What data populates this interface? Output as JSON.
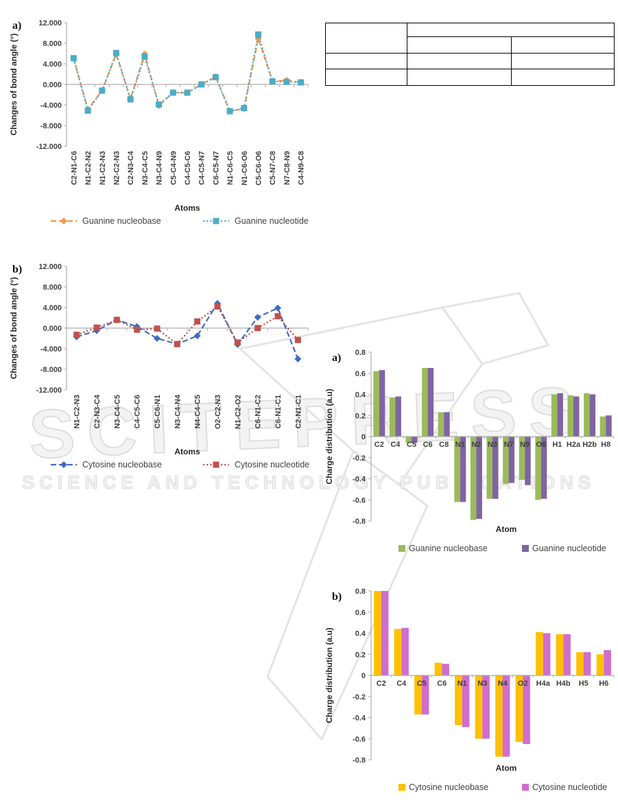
{
  "watermark": {
    "brand": "SCITEPRESS",
    "subtitle": "SCIENCE AND TECHNOLOGY PUBLICATIONS",
    "color": "#e8e8e8"
  },
  "empty_table": {
    "corner_cell": "",
    "top_header_cell": "",
    "sub_header_left": "",
    "sub_header_right": "",
    "rows": [
      [
        "",
        "",
        ""
      ],
      [
        "",
        "",
        ""
      ]
    ]
  },
  "chart_data": [
    {
      "id": "line-guanine-bond-angle",
      "type": "line",
      "panel_label": "a)",
      "ylabel": "Changes of bond angle (°)",
      "xlabel": "Atoms",
      "ylim": [
        -12,
        12
      ],
      "ytick_labels": [
        "12.000",
        "8.000",
        "4.000",
        "0.000",
        "-4.000",
        "-8.000",
        "-12.000"
      ],
      "grid": false,
      "legend_position": "bottom",
      "categories": [
        "C2-N1-C6",
        "N1-C2-N2",
        "N1-C2-N3",
        "N2-C2-N3",
        "C2-N3-C4",
        "N3-C4-C5",
        "N3-C4-N9",
        "C5-C4-N9",
        "C4-C5-C6",
        "C4-C5-N7",
        "C6-C5-N7",
        "N1-C6-C5",
        "N1-C6-O6",
        "C5-C6-O6",
        "C5-N7-C8",
        "N7-C8-N9",
        "C4-N9-C8"
      ],
      "series": [
        {
          "name": "Guanine nucleobase",
          "color": "#F79646",
          "marker": "diamond",
          "line_style": "dashed",
          "values": [
            5.0,
            -4.8,
            -1.2,
            5.9,
            -2.8,
            5.9,
            -4.1,
            -1.6,
            -1.6,
            0.0,
            1.5,
            -5.2,
            -4.7,
            8.9,
            0.6,
            0.8,
            0.4
          ]
        },
        {
          "name": "Guanine nucleotide",
          "color": "#4BACC6",
          "marker": "square",
          "line_style": "dotted",
          "values": [
            5.1,
            -5.1,
            -1.2,
            6.1,
            -2.9,
            5.4,
            -3.9,
            -1.6,
            -1.6,
            0.0,
            1.4,
            -5.2,
            -4.6,
            9.7,
            0.6,
            0.5,
            0.4
          ]
        }
      ]
    },
    {
      "id": "line-cytosine-bond-angle",
      "type": "line",
      "panel_label": "b)",
      "ylabel": "Changes of bond angle (°)",
      "xlabel": "Atoms",
      "ylim": [
        -12,
        12
      ],
      "ytick_labels": [
        "12.000",
        "8.000",
        "4.000",
        "0.000",
        "-4.000",
        "-8.000",
        "-12.000"
      ],
      "grid": false,
      "legend_position": "bottom",
      "categories": [
        "N1-C2-N3",
        "C2-N3-C4",
        "N3-C4-C5",
        "C4-C5-C6",
        "C5-C6-N1",
        "N3-C4-N4",
        "N4-C4-C5",
        "O2-C2-N3",
        "N1-C2-O2",
        "C6-N1-C2",
        "C6-N1-C1",
        "C2-N1-C1"
      ],
      "series": [
        {
          "name": "Cytosine nucleobase",
          "color": "#3F6CC0",
          "marker": "diamond",
          "line_style": "dashed",
          "values": [
            -1.7,
            -0.5,
            1.6,
            0.3,
            -2.0,
            -3.1,
            -1.5,
            4.8,
            -3.2,
            2.1,
            3.9,
            -6.0
          ]
        },
        {
          "name": "Cytosine nucleotide",
          "color": "#C0504D",
          "marker": "square",
          "line_style": "dotted",
          "values": [
            -1.3,
            0.1,
            1.6,
            -0.3,
            -0.1,
            -3.1,
            1.3,
            4.2,
            -2.8,
            0.0,
            2.3,
            -2.3
          ]
        }
      ]
    },
    {
      "id": "bar-guanine-charge-distribution",
      "type": "bar",
      "panel_label": "a)",
      "ylabel": "Charge distribution (a.u)",
      "xlabel": "Atom",
      "ylim": [
        -0.8,
        0.8
      ],
      "ytick_labels": [
        "0.8",
        "0.6",
        "0.4",
        "0.2",
        "0",
        "-0.2",
        "-0.4",
        "-0.6",
        "-0.8"
      ],
      "grid": false,
      "legend_position": "bottom",
      "categories": [
        "C2",
        "C4",
        "C5",
        "C6",
        "C8",
        "N1",
        "N2",
        "N3",
        "N7",
        "N9",
        "O6",
        "H1",
        "H2a",
        "H2b",
        "H8"
      ],
      "series": [
        {
          "name": "Guanine nucleobase",
          "color": "#9BBB59",
          "values": [
            0.62,
            0.37,
            -0.06,
            0.65,
            0.23,
            -0.62,
            -0.79,
            -0.59,
            -0.45,
            -0.41,
            -0.6,
            0.4,
            0.39,
            0.41,
            0.19
          ]
        },
        {
          "name": "Guanine nucleotide",
          "color": "#8064A2",
          "values": [
            0.63,
            0.38,
            -0.06,
            0.65,
            0.23,
            -0.62,
            -0.78,
            -0.59,
            -0.44,
            -0.46,
            -0.59,
            0.41,
            0.38,
            0.4,
            0.2
          ]
        }
      ]
    },
    {
      "id": "bar-cytosine-charge-distribution",
      "type": "bar",
      "panel_label": "b)",
      "ylabel": "Charge distribution (a.u)",
      "xlabel": "Atom",
      "ylim": [
        -0.8,
        0.8
      ],
      "ytick_labels": [
        "0.8",
        "0.6",
        "0.4",
        "0.2",
        "0",
        "-0.2",
        "-0.4",
        "-0.6",
        "-0.8"
      ],
      "grid": false,
      "legend_position": "bottom",
      "categories": [
        "C2",
        "C4",
        "C5",
        "C6",
        "N1",
        "N3",
        "N4",
        "O2",
        "H4a",
        "H4b",
        "H5",
        "H6"
      ],
      "series": [
        {
          "name": "Cytosine nucleobase",
          "color": "#FFC000",
          "values": [
            0.8,
            0.44,
            -0.37,
            0.12,
            -0.47,
            -0.6,
            -0.77,
            -0.63,
            0.41,
            0.39,
            0.22,
            0.2
          ]
        },
        {
          "name": "Cytosine nucleotide",
          "color": "#D06DCD",
          "values": [
            0.8,
            0.45,
            -0.37,
            0.11,
            -0.49,
            -0.6,
            -0.77,
            -0.65,
            0.4,
            0.39,
            0.22,
            0.24
          ]
        }
      ]
    }
  ]
}
